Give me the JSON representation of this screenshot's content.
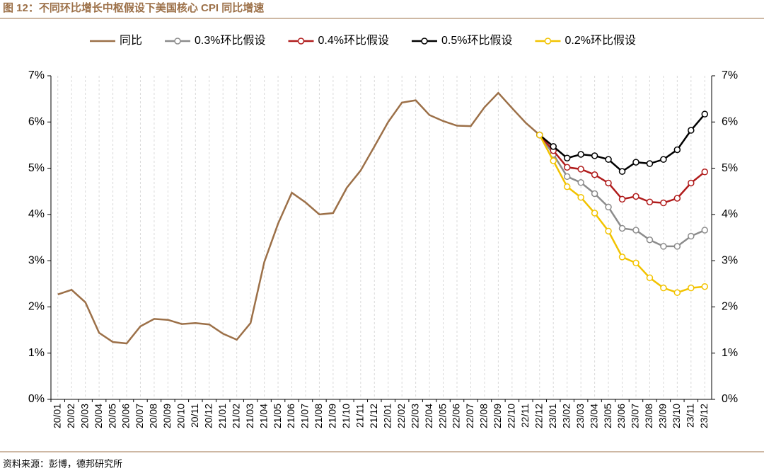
{
  "chart_data": {
    "type": "line",
    "title": "图 12：不同环比增长中枢假设下美国核心 CPI 同比增速",
    "source": "资料来源：彭博，德邦研究所",
    "categories": [
      "20/01",
      "20/02",
      "20/03",
      "20/04",
      "20/05",
      "20/06",
      "20/07",
      "20/08",
      "20/09",
      "20/10",
      "20/11",
      "20/12",
      "21/01",
      "21/02",
      "21/03",
      "21/04",
      "21/05",
      "21/06",
      "21/07",
      "21/08",
      "21/09",
      "21/10",
      "21/11",
      "21/12",
      "22/01",
      "22/02",
      "22/03",
      "22/04",
      "22/05",
      "22/06",
      "22/07",
      "22/08",
      "22/09",
      "22/10",
      "22/11",
      "22/12",
      "23/01",
      "23/02",
      "23/03",
      "23/04",
      "23/05",
      "23/06",
      "23/07",
      "23/08",
      "23/09",
      "23/10",
      "23/11",
      "23/12"
    ],
    "series": [
      {
        "name": "同比",
        "color": "#9c7048",
        "markers": false,
        "values": [
          2.27,
          2.37,
          2.1,
          1.44,
          1.24,
          1.21,
          1.58,
          1.74,
          1.72,
          1.63,
          1.65,
          1.62,
          1.42,
          1.29,
          1.65,
          2.97,
          3.8,
          4.47,
          4.26,
          4.0,
          4.03,
          4.58,
          4.95,
          5.47,
          6.0,
          6.42,
          6.47,
          6.15,
          6.02,
          5.92,
          5.91,
          6.32,
          6.63,
          6.3,
          5.98,
          5.72,
          null,
          null,
          null,
          null,
          null,
          null,
          null,
          null,
          null,
          null,
          null,
          null
        ]
      },
      {
        "name": "0.3%环比假设",
        "color": "#8c8c8c",
        "markers": true,
        "values": [
          null,
          null,
          null,
          null,
          null,
          null,
          null,
          null,
          null,
          null,
          null,
          null,
          null,
          null,
          null,
          null,
          null,
          null,
          null,
          null,
          null,
          null,
          null,
          null,
          null,
          null,
          null,
          null,
          null,
          null,
          null,
          null,
          null,
          null,
          null,
          5.72,
          5.3,
          4.82,
          4.69,
          4.45,
          4.16,
          3.7,
          3.66,
          3.45,
          3.31,
          3.31,
          3.53,
          3.66
        ]
      },
      {
        "name": "0.4%环比假设",
        "color": "#b01c1c",
        "markers": true,
        "values": [
          null,
          null,
          null,
          null,
          null,
          null,
          null,
          null,
          null,
          null,
          null,
          null,
          null,
          null,
          null,
          null,
          null,
          null,
          null,
          null,
          null,
          null,
          null,
          null,
          null,
          null,
          null,
          null,
          null,
          null,
          null,
          null,
          null,
          null,
          null,
          5.72,
          5.38,
          5.02,
          4.98,
          4.86,
          4.68,
          4.33,
          4.39,
          4.27,
          4.25,
          4.35,
          4.68,
          4.92
        ]
      },
      {
        "name": "0.5%环比假设",
        "color": "#000000",
        "markers": true,
        "values": [
          null,
          null,
          null,
          null,
          null,
          null,
          null,
          null,
          null,
          null,
          null,
          null,
          null,
          null,
          null,
          null,
          null,
          null,
          null,
          null,
          null,
          null,
          null,
          null,
          null,
          null,
          null,
          null,
          null,
          null,
          null,
          null,
          null,
          null,
          null,
          5.72,
          5.47,
          5.22,
          5.3,
          5.27,
          5.19,
          4.93,
          5.13,
          5.1,
          5.19,
          5.4,
          5.82,
          6.17
        ]
      },
      {
        "name": "0.2%环比假设",
        "color": "#f2c300",
        "markers": true,
        "values": [
          null,
          null,
          null,
          null,
          null,
          null,
          null,
          null,
          null,
          null,
          null,
          null,
          null,
          null,
          null,
          null,
          null,
          null,
          null,
          null,
          null,
          null,
          null,
          null,
          null,
          null,
          null,
          null,
          null,
          null,
          null,
          null,
          null,
          null,
          null,
          5.72,
          5.16,
          4.6,
          4.37,
          4.03,
          3.64,
          3.08,
          2.95,
          2.63,
          2.41,
          2.31,
          2.41,
          2.44
        ]
      }
    ],
    "ylim": [
      0,
      7
    ],
    "yticks": [
      {
        "value": 0,
        "label": "0%"
      },
      {
        "value": 1,
        "label": "1%"
      },
      {
        "value": 2,
        "label": "2%"
      },
      {
        "value": 3,
        "label": "3%"
      },
      {
        "value": 4,
        "label": "4%"
      },
      {
        "value": 5,
        "label": "5%"
      },
      {
        "value": 6,
        "label": "6%"
      },
      {
        "value": 7,
        "label": "7%"
      }
    ],
    "y2lim": [
      0,
      7
    ],
    "y2ticks": [
      {
        "value": 0,
        "label": "0%"
      },
      {
        "value": 1,
        "label": "1%"
      },
      {
        "value": 2,
        "label": "2%"
      },
      {
        "value": 3,
        "label": "3%"
      },
      {
        "value": 4,
        "label": "4%"
      },
      {
        "value": 5,
        "label": "5%"
      },
      {
        "value": 6,
        "label": "6%"
      },
      {
        "value": 7,
        "label": "7%"
      }
    ],
    "grid": true,
    "legend": "top"
  }
}
